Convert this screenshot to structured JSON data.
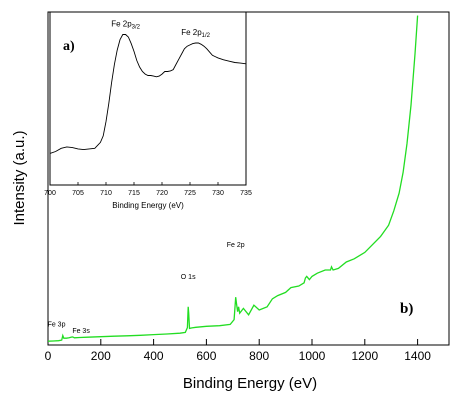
{
  "chart_data": [
    {
      "id": "survey",
      "type": "line",
      "panel_label": "b)",
      "xlabel": "Binding Energy (eV)",
      "ylabel": "Intensity (a.u.)",
      "xlim": [
        0,
        1500
      ],
      "x_ticks": [
        0,
        200,
        400,
        600,
        800,
        1000,
        1200,
        1400
      ],
      "y_ticks_shown": false,
      "grid": false,
      "series": [
        {
          "color": "#22dd22",
          "x": [
            0,
            20,
            40,
            52,
            56,
            60,
            70,
            80,
            92,
            96,
            100,
            120,
            150,
            200,
            250,
            300,
            350,
            400,
            450,
            500,
            520,
            528,
            531,
            533,
            536,
            545,
            560,
            600,
            650,
            690,
            705,
            711,
            714,
            718,
            722,
            726,
            740,
            760,
            780,
            800,
            830,
            850,
            870,
            900,
            920,
            950,
            970,
            975,
            980,
            990,
            1000,
            1020,
            1050,
            1070,
            1074,
            1080,
            1100,
            1130,
            1160,
            1200,
            1230,
            1260,
            1290,
            1310,
            1330,
            1345,
            1360,
            1375,
            1390,
            1400
          ],
          "y": [
            0.5,
            0.6,
            0.8,
            1.2,
            4.0,
            2.4,
            2.4,
            2.6,
            3.2,
            3.0,
            2.6,
            2.8,
            3.0,
            3.3,
            3.6,
            3.9,
            4.2,
            4.6,
            5.0,
            5.5,
            6.0,
            9,
            22,
            18,
            8.5,
            8.8,
            9.2,
            9.8,
            10.2,
            11,
            14,
            28,
            24,
            19,
            22,
            18,
            21,
            17,
            23,
            20,
            22,
            27,
            29,
            31,
            34,
            35,
            37,
            40,
            41,
            39,
            41,
            43,
            45,
            45,
            47,
            45,
            46,
            50,
            52,
            56,
            61,
            66,
            73,
            82,
            93,
            106,
            124,
            148,
            180,
            204
          ]
        }
      ],
      "annotations": [
        {
          "text": "Fe 3p",
          "x": 55
        },
        {
          "text": "Fe 3s",
          "x": 95
        },
        {
          "text": "O 1s",
          "x": 531
        },
        {
          "text": "Fe 2p",
          "x": 711
        }
      ]
    },
    {
      "id": "inset",
      "type": "line",
      "panel_label": "a)",
      "xlabel": "Binding Energy (eV)",
      "xlim": [
        700,
        735
      ],
      "x_ticks": [
        700,
        705,
        710,
        715,
        720,
        725,
        730,
        735
      ],
      "y_ticks_shown": false,
      "grid": false,
      "series": [
        {
          "color": "#000000",
          "x": [
            700,
            701,
            702,
            703,
            704,
            705,
            706,
            707,
            708,
            709,
            709.5,
            710,
            710.5,
            711,
            711.5,
            712,
            712.5,
            713,
            713.5,
            714,
            714.5,
            715,
            715.5,
            716,
            716.5,
            717,
            717.5,
            718,
            718.5,
            719,
            719.5,
            720,
            720.5,
            721,
            721.5,
            722,
            722.5,
            723,
            723.5,
            724,
            724.5,
            725,
            725.5,
            726,
            726.5,
            727,
            727.5,
            728,
            728.5,
            729,
            729.5,
            730,
            731,
            732,
            733,
            734,
            735
          ],
          "y": [
            0.035,
            0.05,
            0.075,
            0.085,
            0.08,
            0.07,
            0.065,
            0.07,
            0.075,
            0.12,
            0.17,
            0.28,
            0.42,
            0.58,
            0.72,
            0.83,
            0.91,
            0.95,
            0.95,
            0.93,
            0.88,
            0.82,
            0.75,
            0.7,
            0.665,
            0.645,
            0.635,
            0.635,
            0.63,
            0.625,
            0.63,
            0.645,
            0.665,
            0.665,
            0.67,
            0.68,
            0.72,
            0.76,
            0.8,
            0.84,
            0.86,
            0.87,
            0.88,
            0.885,
            0.885,
            0.875,
            0.86,
            0.84,
            0.815,
            0.79,
            0.78,
            0.77,
            0.755,
            0.745,
            0.735,
            0.73,
            0.725
          ]
        }
      ],
      "annotations": [
        {
          "text": "Fe 2p",
          "sub": "3/2",
          "x": 713.5
        },
        {
          "text": "Fe 2p",
          "sub": "1/2",
          "x": 726
        }
      ]
    }
  ]
}
